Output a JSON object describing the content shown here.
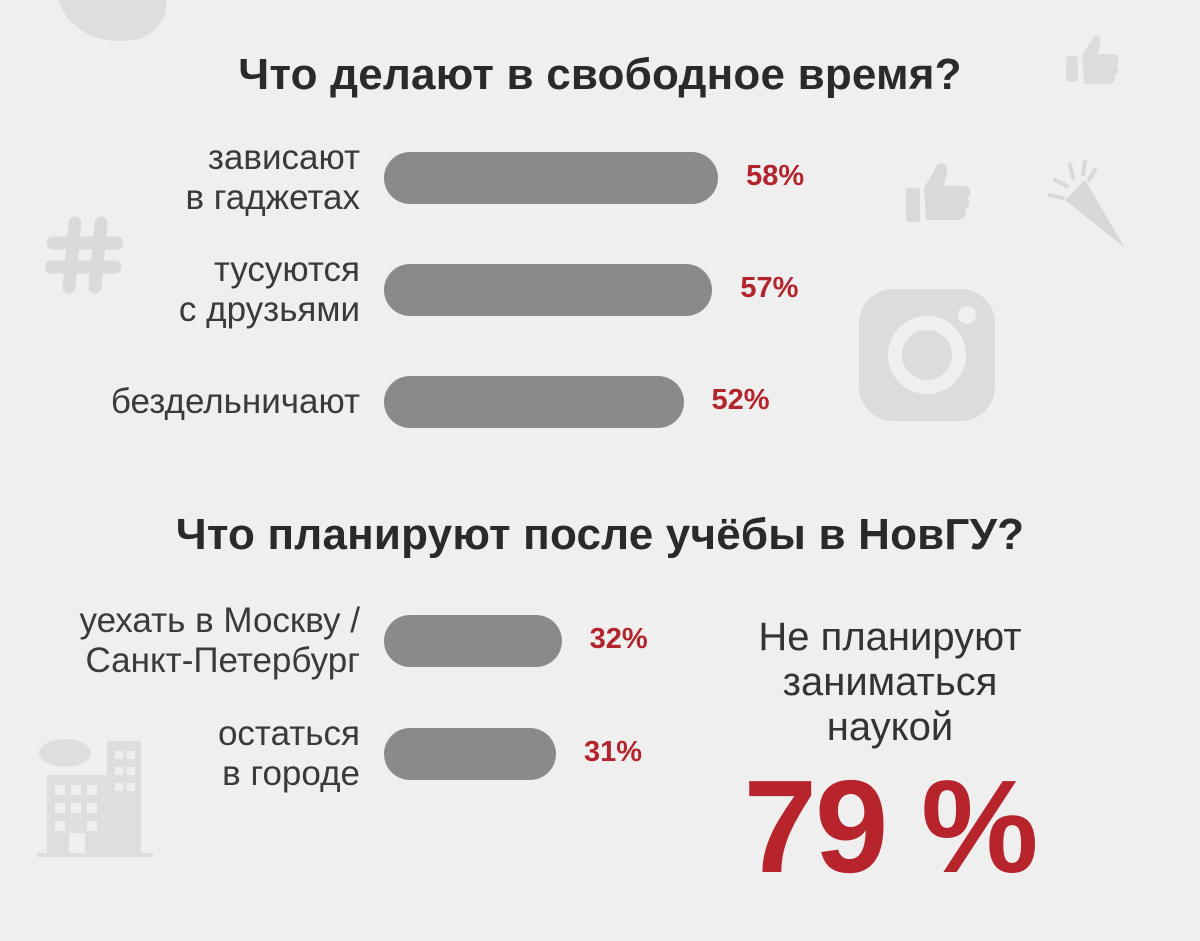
{
  "chart_data": [
    {
      "type": "bar",
      "orientation": "horizontal",
      "title": "Что делают в свободное время?",
      "categories": [
        "зависают в гаджетах",
        "тусуются с друзьями",
        "бездельничают"
      ],
      "category_lines": [
        [
          "зависают",
          "в гаджетах"
        ],
        [
          "тусуются",
          "с друзьями"
        ],
        [
          "бездельничают"
        ]
      ],
      "values": [
        58,
        57,
        52
      ],
      "value_labels": [
        "58%",
        "57%",
        "52%"
      ],
      "unit": "%",
      "colors": {
        "bar": "#8a8a8a",
        "value": "#b3252c"
      },
      "grid": false
    },
    {
      "type": "bar",
      "orientation": "horizontal",
      "title": "Что планируют после учёбы в НовГУ?",
      "categories": [
        "уехать в Москву / Санкт-Петербург",
        "остаться в городе"
      ],
      "category_lines": [
        [
          "уехать в Москву /",
          "Санкт-Петербург"
        ],
        [
          "остаться",
          "в городе"
        ]
      ],
      "values": [
        32,
        31
      ],
      "value_labels": [
        "32%",
        "31%"
      ],
      "unit": "%",
      "colors": {
        "bar": "#8a8a8a",
        "value": "#b3252c"
      },
      "grid": false
    }
  ],
  "callout": {
    "lines": [
      "Не планируют",
      "заниматься",
      "наукой"
    ],
    "value": "79 %",
    "color": "#b7242b"
  },
  "decor_icons": [
    "twitter-icon",
    "thumbs-up-icon",
    "hashtag-icon",
    "party-popper-icon",
    "instagram-icon",
    "city-buildings-icon"
  ]
}
